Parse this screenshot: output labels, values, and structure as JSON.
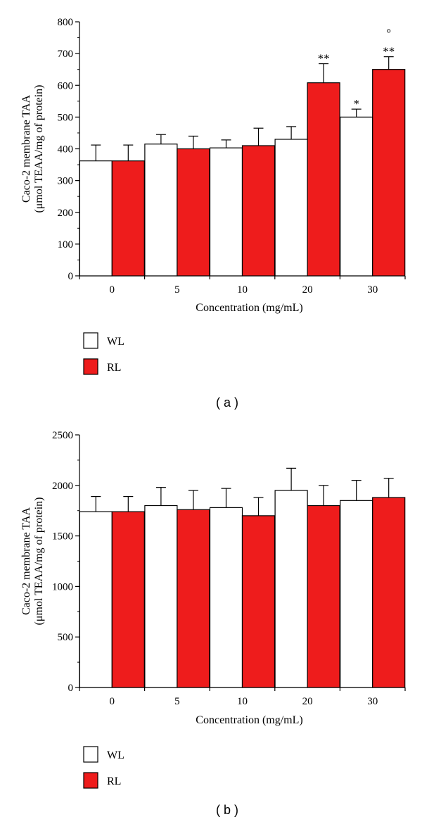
{
  "chart_data": [
    {
      "type": "bar",
      "panel": "( a )",
      "ylabel_line1": "Caco-2 membrane TAA",
      "ylabel_line2": "(μmol TEAA/mg of protein)",
      "xlabel": "Concentration (mg/mL)",
      "categories": [
        "0",
        "5",
        "10",
        "20",
        "30"
      ],
      "ylim": [
        0,
        800
      ],
      "yticks": [
        "0",
        "100",
        "200",
        "300",
        "400",
        "500",
        "600",
        "700",
        "800"
      ],
      "series": [
        {
          "name": "WL",
          "color": "#ffffff",
          "values": [
            362,
            415,
            403,
            430,
            500
          ],
          "errors": [
            50,
            30,
            25,
            40,
            25
          ]
        },
        {
          "name": "RL",
          "color": "#ee1c1c",
          "values": [
            362,
            400,
            410,
            608,
            650
          ],
          "errors": [
            50,
            40,
            55,
            60,
            40
          ]
        }
      ],
      "annotations": [
        {
          "category": 3,
          "series": 1,
          "text": "**"
        },
        {
          "category": 4,
          "series": 0,
          "text": "*"
        },
        {
          "category": 4,
          "series": 1,
          "text": "**"
        },
        {
          "category": 4,
          "series": 1,
          "text": "°"
        }
      ],
      "legend": [
        "WL",
        "RL"
      ]
    },
    {
      "type": "bar",
      "panel": "( b )",
      "ylabel_line1": "Caco-2 membrane TAA",
      "ylabel_line2": "(μmol TEAA/mg of protein)",
      "xlabel": "Concentration (mg/mL)",
      "categories": [
        "0",
        "5",
        "10",
        "20",
        "30"
      ],
      "ylim": [
        0,
        2500
      ],
      "yticks": [
        "0",
        "500",
        "1000",
        "1500",
        "2000",
        "2500"
      ],
      "series": [
        {
          "name": "WL",
          "color": "#ffffff",
          "values": [
            1740,
            1800,
            1780,
            1950,
            1850
          ],
          "errors": [
            150,
            180,
            190,
            220,
            200
          ]
        },
        {
          "name": "RL",
          "color": "#ee1c1c",
          "values": [
            1740,
            1760,
            1700,
            1800,
            1880
          ],
          "errors": [
            150,
            190,
            180,
            200,
            190
          ]
        }
      ],
      "annotations": [],
      "legend": [
        "WL",
        "RL"
      ]
    }
  ]
}
